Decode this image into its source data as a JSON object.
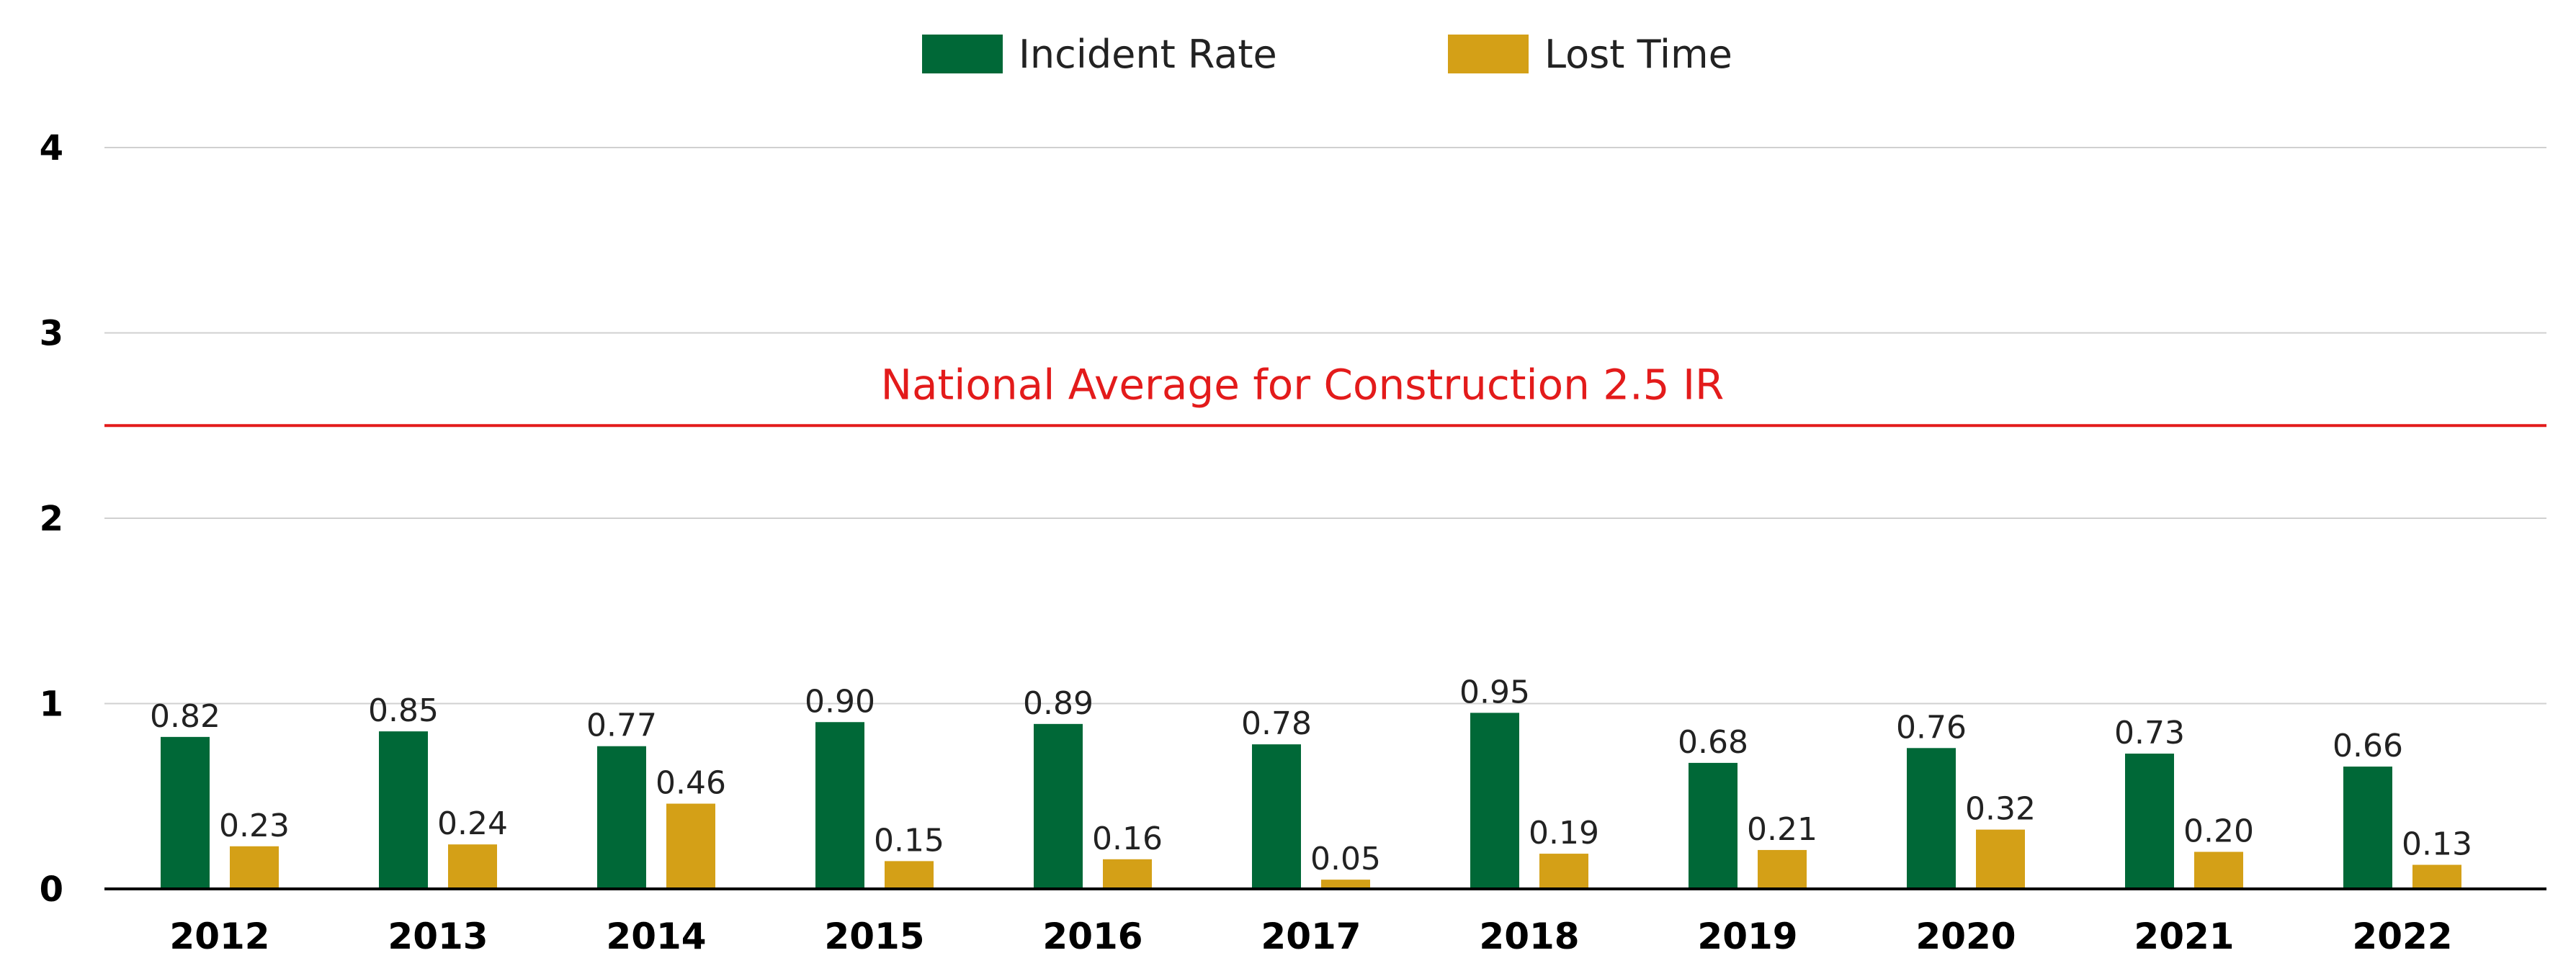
{
  "chart_data": {
    "type": "bar",
    "categories": [
      "2012",
      "2013",
      "2014",
      "2015",
      "2016",
      "2017",
      "2018",
      "2019",
      "2020",
      "2021",
      "2022"
    ],
    "series": [
      {
        "name": "Incident Rate",
        "color": "#006837",
        "values": [
          0.82,
          0.85,
          0.77,
          0.9,
          0.89,
          0.78,
          0.95,
          0.68,
          0.76,
          0.73,
          0.66
        ],
        "labels": [
          "0.82",
          "0.85",
          "0.77",
          "0.90",
          "0.89",
          "0.78",
          "0.95",
          "0.68",
          "0.76",
          "0.73",
          "0.66"
        ]
      },
      {
        "name": "Lost Time",
        "color": "#d4a017",
        "values": [
          0.23,
          0.24,
          0.46,
          0.15,
          0.16,
          0.05,
          0.19,
          0.21,
          0.32,
          0.2,
          0.13
        ],
        "labels": [
          "0.23",
          "0.24",
          "0.46",
          "0.15",
          "0.16",
          "0.05",
          "0.19",
          "0.21",
          "0.32",
          "0.20",
          "0.13"
        ]
      }
    ],
    "ylim": [
      0,
      4
    ],
    "yticks": [
      "0",
      "1",
      "2",
      "3",
      "4"
    ],
    "grid": true,
    "legend": "top-center",
    "reference_line": {
      "value": 2.5,
      "label": "National Average for Construction 2.5 IR",
      "color": "#e31b1b"
    }
  }
}
